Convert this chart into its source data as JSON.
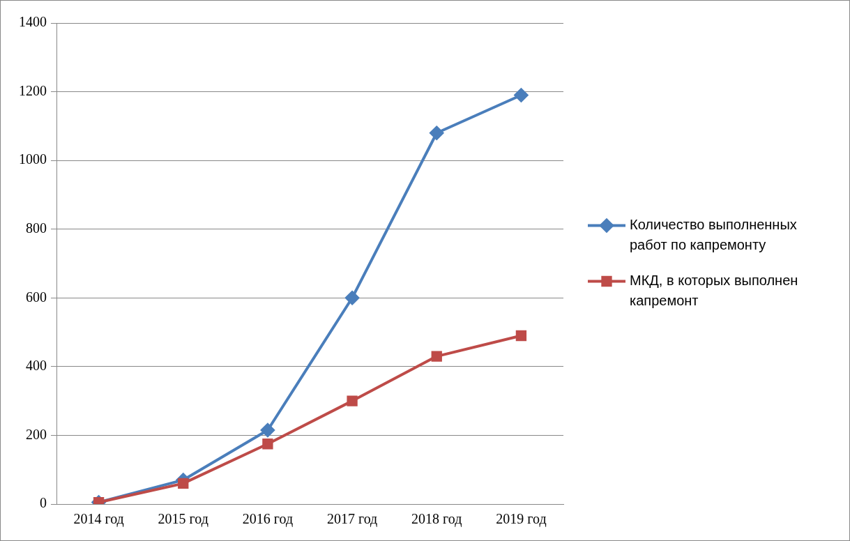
{
  "chart_data": {
    "type": "line",
    "categories": [
      "2014 год",
      "2015 год",
      "2016 год",
      "2017 год",
      "2018 год",
      "2019 год"
    ],
    "series": [
      {
        "name": "Количество выполненных работ по капремонту",
        "color": "#4a7ebb",
        "marker": "diamond",
        "values": [
          5,
          70,
          215,
          600,
          1080,
          1190
        ]
      },
      {
        "name": "МКД, в которых выполнен капремонт",
        "color": "#be4b48",
        "marker": "square",
        "values": [
          5,
          60,
          175,
          300,
          430,
          490
        ]
      }
    ],
    "ylim": [
      0,
      1400
    ],
    "yticks": [
      0,
      200,
      400,
      600,
      800,
      1000,
      1200,
      1400
    ],
    "grid": "y",
    "legend": "right",
    "line_style": "solid"
  }
}
